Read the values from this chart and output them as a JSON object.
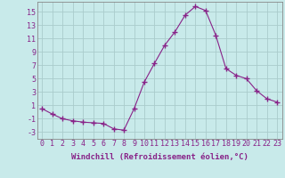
{
  "x": [
    0,
    1,
    2,
    3,
    4,
    5,
    6,
    7,
    8,
    9,
    10,
    11,
    12,
    13,
    14,
    15,
    16,
    17,
    18,
    19,
    20,
    21,
    22,
    23
  ],
  "y": [
    0.5,
    -0.3,
    -1.0,
    -1.3,
    -1.5,
    -1.6,
    -1.7,
    -2.5,
    -2.7,
    0.5,
    4.5,
    7.3,
    10.0,
    12.0,
    14.5,
    15.8,
    15.2,
    11.5,
    6.5,
    5.5,
    5.0,
    3.2,
    2.0,
    1.5
  ],
  "line_color": "#882288",
  "marker": "+",
  "marker_size": 4,
  "bg_color": "#c8eaea",
  "grid_color": "#aacccc",
  "xlabel": "Windchill (Refroidissement éolien,°C)",
  "xlabel_fontsize": 6.5,
  "tick_fontsize": 6.0,
  "ylim": [
    -4,
    16.5
  ],
  "yticks": [
    -3,
    -1,
    1,
    3,
    5,
    7,
    9,
    11,
    13,
    15
  ],
  "xticks": [
    0,
    1,
    2,
    3,
    4,
    5,
    6,
    7,
    8,
    9,
    10,
    11,
    12,
    13,
    14,
    15,
    16,
    17,
    18,
    19,
    20,
    21,
    22,
    23
  ]
}
